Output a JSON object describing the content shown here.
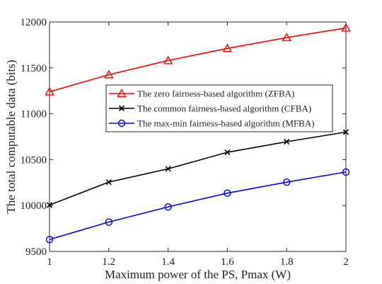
{
  "chart_data": {
    "type": "line",
    "title": "",
    "xlabel": "Maximum power of the PS, Pmax (W)",
    "ylabel": "The total computable data (bits)",
    "x": [
      1,
      1.2,
      1.4,
      1.6,
      1.8,
      2
    ],
    "x_tick_labels": [
      "1",
      "1.2",
      "1.4",
      "1.6",
      "1.8",
      "2"
    ],
    "xlim": [
      1,
      2
    ],
    "ylim": [
      9500,
      12000
    ],
    "y_ticks": [
      9500,
      10000,
      10500,
      11000,
      11500,
      12000
    ],
    "y_tick_labels": [
      "9500",
      "10000",
      "10500",
      "11000",
      "11500",
      "12000"
    ],
    "grid": false,
    "legend_position": "upper-middle",
    "series": [
      {
        "name": "The zero fairness-based algorithm (ZFBA)",
        "color": "#ff0000",
        "marker": "triangle",
        "values": [
          11240,
          11425,
          11580,
          11712,
          11830,
          11935
        ]
      },
      {
        "name": "The common fairness-based algorithm (CFBA)",
        "color": "#000000",
        "marker": "x",
        "values": [
          10005,
          10255,
          10400,
          10580,
          10695,
          10800
        ]
      },
      {
        "name": "The max-min fairness-based algorithm (MFBA)",
        "color": "#0000ff",
        "marker": "circle",
        "values": [
          9630,
          9820,
          9985,
          10135,
          10255,
          10365
        ]
      }
    ]
  }
}
